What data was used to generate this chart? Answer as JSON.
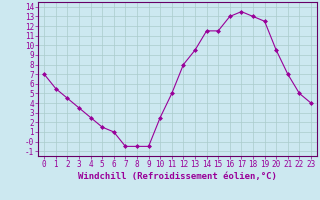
{
  "x": [
    0,
    1,
    2,
    3,
    4,
    5,
    6,
    7,
    8,
    9,
    10,
    11,
    12,
    13,
    14,
    15,
    16,
    17,
    18,
    19,
    20,
    21,
    22,
    23
  ],
  "y": [
    7.0,
    5.5,
    4.5,
    3.5,
    2.5,
    1.5,
    1.0,
    -0.5,
    -0.5,
    -0.5,
    2.5,
    5.0,
    8.0,
    9.5,
    11.5,
    11.5,
    13.0,
    13.5,
    13.0,
    12.5,
    9.5,
    7.0,
    5.0,
    4.0
  ],
  "line_color": "#990099",
  "marker": "D",
  "marker_size": 2,
  "bg_color": "#cce8f0",
  "grid_color": "#aacccc",
  "xlabel": "Windchill (Refroidissement éolien,°C)",
  "xlabel_fontsize": 6.5,
  "xlim": [
    -0.5,
    23.5
  ],
  "ylim": [
    -1.5,
    14.5
  ],
  "yticks": [
    -1,
    0,
    1,
    2,
    3,
    4,
    5,
    6,
    7,
    8,
    9,
    10,
    11,
    12,
    13,
    14
  ],
  "xticks": [
    0,
    1,
    2,
    3,
    4,
    5,
    6,
    7,
    8,
    9,
    10,
    11,
    12,
    13,
    14,
    15,
    16,
    17,
    18,
    19,
    20,
    21,
    22,
    23
  ],
  "tick_fontsize": 5.5,
  "tick_color": "#990099",
  "spine_color": "#660066"
}
